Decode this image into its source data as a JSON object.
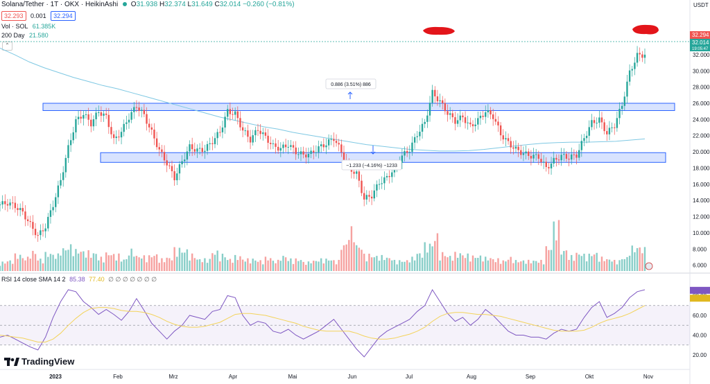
{
  "header": {
    "title": "Solana/Tether · 1T · OKX · HeikinAshi",
    "ohlc": {
      "o_label": "O",
      "o": "31.938",
      "h_label": "H",
      "h": "32.374",
      "l_label": "L",
      "l": "31.649",
      "c_label": "C",
      "c": "32.014",
      "change": "−0.260 (−0.81%)"
    },
    "bid": "32.293",
    "spread": "0.001",
    "ask": "32.294",
    "vol_label": "Vol · SOL",
    "vol_value": "61.385K",
    "ma_label": "200 Day",
    "ma_value": "21.580"
  },
  "price_axis": {
    "currency": "USDT"
  },
  "price_tags": {
    "ask": "32.294",
    "last": "32.014",
    "countdown": "19:05:47"
  },
  "annotations": {
    "upper_measure": "0.886 (3.51%) 886",
    "lower_measure": "−1.233 (−4.16%) −1233"
  },
  "rsi_header": {
    "label": "RSI 14 close SMA 14 2",
    "rsi": "85.38",
    "sma": "77.40",
    "extras": "∅ ∅ ∅ ∅ ∅ ∅ ∅"
  },
  "logo": {
    "text": "TradingView"
  },
  "colors": {
    "up": "#26a69a",
    "down": "#ef5350",
    "ma": "#7ec8e3",
    "rsi": "#7e57c2",
    "rsi_ma": "#f3d35a",
    "zone": "#2962ff",
    "marker": "#e3151a"
  },
  "chart_data": [
    {
      "type": "candlestick",
      "title": "",
      "x": [
        "2023",
        "Feb",
        "Mrz",
        "Apr",
        "Mai",
        "Jun",
        "Jul",
        "Aug",
        "Sep",
        "Okt",
        "Nov"
      ],
      "y_ticks": [
        6,
        8,
        10,
        12,
        14,
        16,
        18,
        20,
        22,
        24,
        26,
        28,
        30,
        32,
        34
      ],
      "ylim": [
        5.2,
        35.5
      ],
      "y_scale": "linear",
      "grid": false,
      "zones": [
        {
          "from": 25.1,
          "to": 26.0
        },
        {
          "from": 18.7,
          "to": 19.9
        }
      ],
      "price_path": [
        13.5,
        13.7,
        13.3,
        12.5,
        11.0,
        9.6,
        10.8,
        13.5,
        16.5,
        20.5,
        23.8,
        24.7,
        23.5,
        25.0,
        24.3,
        21.4,
        22.5,
        24.3,
        25.7,
        24.5,
        22.4,
        20.2,
        18.6,
        16.8,
        18.8,
        20.6,
        20.2,
        20.3,
        21.3,
        22.5,
        25.0,
        24.7,
        22.7,
        21.5,
        22.8,
        21.8,
        20.7,
        20.4,
        20.9,
        20.0,
        19.6,
        19.8,
        20.5,
        21.0,
        21.7,
        20.0,
        18.0,
        17.3,
        14.2,
        14.6,
        16.2,
        16.8,
        18.0,
        19.5,
        20.3,
        22.2,
        23.6,
        27.3,
        26.2,
        24.8,
        23.8,
        24.3,
        23.1,
        23.9,
        25.0,
        24.4,
        22.2,
        21.1,
        20.3,
        19.8,
        19.5,
        19.4,
        18.0,
        18.9,
        19.5,
        19.3,
        19.6,
        21.7,
        23.6,
        24.0,
        22.3,
        23.3,
        25.8,
        29.8,
        31.9,
        32.0
      ],
      "volume_path": [
        0.3,
        0.35,
        0.55,
        0.45,
        0.65,
        0.4,
        0.6,
        0.55,
        0.75,
        0.85,
        0.7,
        0.65,
        0.6,
        0.45,
        0.6,
        0.55,
        0.4,
        0.7,
        0.5,
        0.5,
        0.55,
        0.4,
        0.45,
        0.75,
        0.7,
        0.55,
        0.4,
        0.4,
        0.65,
        0.55,
        0.4,
        0.5,
        0.4,
        0.4,
        0.35,
        0.45,
        0.35,
        0.5,
        0.4,
        0.4,
        0.3,
        0.35,
        0.4,
        0.4,
        0.35,
        0.9,
        1.4,
        0.85,
        0.55,
        0.5,
        0.5,
        0.45,
        0.35,
        0.35,
        0.45,
        0.6,
        0.9,
        1.2,
        0.6,
        0.5,
        0.6,
        0.55,
        0.5,
        0.5,
        0.45,
        0.4,
        0.35,
        0.45,
        0.35,
        0.35,
        0.35,
        0.35,
        0.8,
        1.6,
        0.7,
        0.5,
        0.6,
        0.55,
        0.6,
        0.45,
        0.4,
        0.35,
        0.45,
        0.8,
        0.8,
        0.75
      ],
      "ma200_path": [
        32.8,
        32.0,
        31.1,
        30.4,
        29.8,
        29.2,
        28.7,
        28.2,
        27.8,
        27.3,
        26.8,
        26.3,
        25.8,
        25.3,
        24.8,
        24.3,
        23.9,
        23.5,
        23.1,
        22.8,
        22.4,
        22.1,
        21.8,
        21.5,
        21.2,
        20.9,
        20.7,
        20.5,
        20.3,
        20.2,
        20.1,
        20.1,
        20.15,
        20.3,
        20.5,
        20.7,
        20.9,
        21.05,
        21.15,
        21.2,
        21.2,
        21.25,
        21.3,
        21.45,
        21.6
      ],
      "ma200_start": 41
    },
    {
      "type": "line",
      "title": "RSI 14 close SMA 14 2",
      "y_ticks": [
        20,
        40,
        60,
        80
      ],
      "ylim": [
        13,
        93
      ],
      "band": [
        30,
        70
      ],
      "series": [
        {
          "name": "RSI",
          "values": [
            38,
            40,
            36,
            32,
            28,
            25,
            38,
            58,
            74,
            86,
            84,
            74,
            68,
            61,
            66,
            61,
            55,
            64,
            77,
            65,
            52,
            44,
            36,
            44,
            50,
            60,
            58,
            56,
            64,
            66,
            80,
            78,
            60,
            50,
            54,
            52,
            44,
            42,
            46,
            40,
            36,
            40,
            44,
            50,
            56,
            46,
            36,
            26,
            18,
            28,
            38,
            44,
            48,
            52,
            56,
            64,
            70,
            86,
            74,
            62,
            54,
            58,
            50,
            56,
            66,
            60,
            52,
            44,
            40,
            40,
            38,
            38,
            36,
            42,
            46,
            44,
            46,
            58,
            68,
            74,
            58,
            62,
            68,
            78,
            84,
            86
          ]
        },
        {
          "name": "SMA",
          "values": [
            40,
            39,
            38,
            37,
            35,
            33,
            33,
            36,
            42,
            50,
            57,
            63,
            67,
            68,
            68,
            67,
            65,
            64,
            64,
            63,
            61,
            58,
            54,
            51,
            49,
            48,
            48,
            49,
            51,
            53,
            57,
            61,
            62,
            62,
            61,
            60,
            58,
            56,
            54,
            52,
            49,
            47,
            45,
            44,
            44,
            44,
            44,
            42,
            39,
            37,
            36,
            36,
            37,
            39,
            41,
            44,
            48,
            54,
            59,
            62,
            63,
            63,
            62,
            61,
            61,
            60,
            59,
            57,
            55,
            53,
            51,
            49,
            47,
            45,
            44,
            44,
            44,
            45,
            48,
            52,
            55,
            57,
            59,
            62,
            66,
            70
          ]
        }
      ]
    }
  ]
}
